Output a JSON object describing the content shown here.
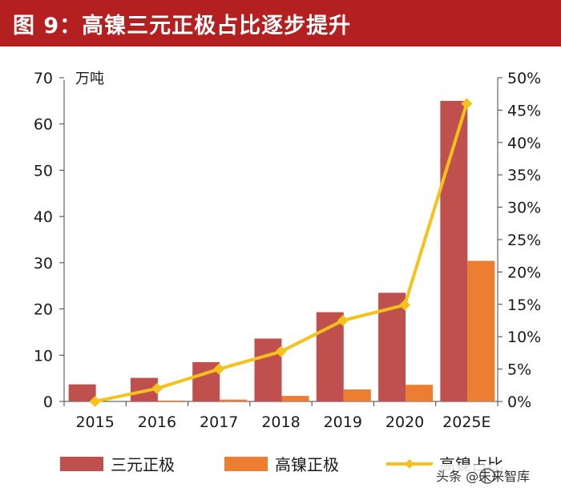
{
  "header": {
    "title": "图 9：高镍三元正极占比逐步提升"
  },
  "chart_data": {
    "type": "bar",
    "categories": [
      "2015",
      "2016",
      "2017",
      "2018",
      "2019",
      "2020",
      "2025E"
    ],
    "series": [
      {
        "name": "三元正极",
        "type": "bar",
        "axis": "left",
        "color": "#c0504d",
        "values": [
          3.7,
          5.1,
          8.5,
          13.6,
          19.3,
          23.5,
          65.0
        ]
      },
      {
        "name": "高镍正极",
        "type": "bar",
        "axis": "left",
        "color": "#ed7d31",
        "values": [
          0.0,
          0.2,
          0.4,
          1.2,
          2.6,
          3.6,
          30.4
        ]
      },
      {
        "name": "高镍占比",
        "type": "line",
        "axis": "right",
        "color": "#f5c11b",
        "values": [
          0.0,
          2.0,
          5.0,
          7.7,
          12.5,
          14.9,
          46.0
        ]
      }
    ],
    "ylabel_left": "万吨",
    "ylim_left": [
      0,
      70
    ],
    "yticks_left": [
      "0",
      "10",
      "20",
      "30",
      "40",
      "50",
      "60",
      "70"
    ],
    "ylim_right": [
      0,
      50
    ],
    "yticks_right": [
      "0%",
      "5%",
      "10%",
      "15%",
      "20%",
      "25%",
      "30%",
      "35%",
      "40%",
      "45%",
      "50%"
    ],
    "grid": false,
    "legend": "bottom"
  },
  "watermark": {
    "text": "头条 @未来智库"
  }
}
